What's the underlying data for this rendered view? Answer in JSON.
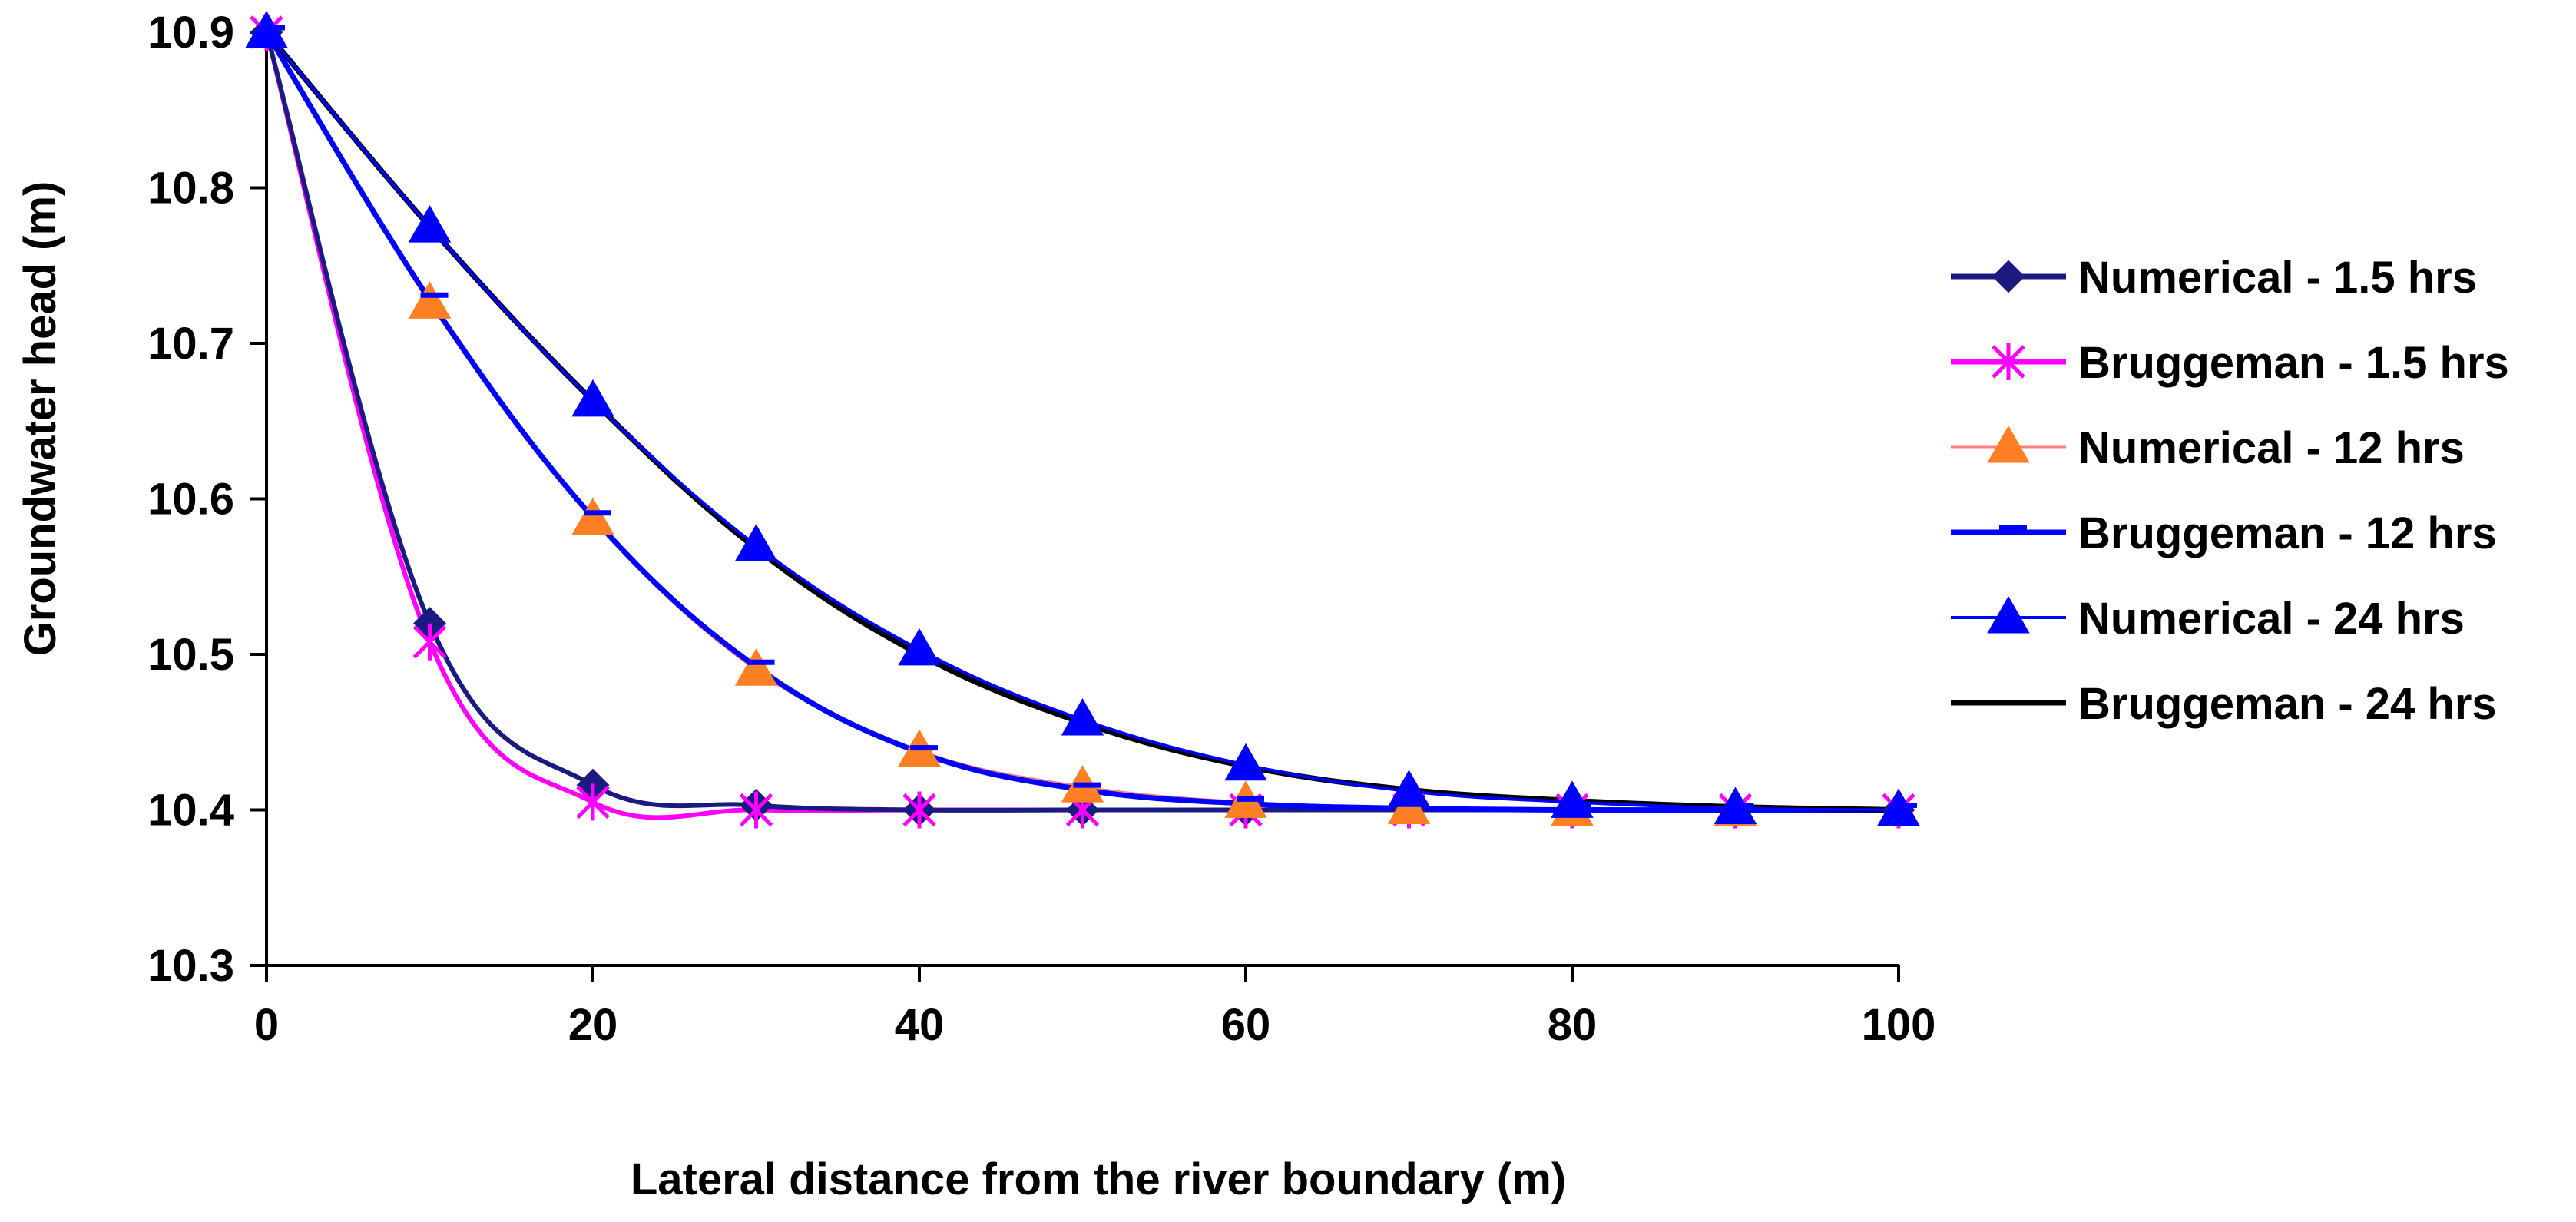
{
  "chart_data": {
    "type": "line",
    "title": "",
    "xlabel": "Lateral distance from the river boundary (m)",
    "ylabel": "Groundwater head  (m)",
    "xlim": [
      0,
      100
    ],
    "ylim": [
      10.3,
      10.9
    ],
    "x_ticks": [
      "0",
      "20",
      "40",
      "60",
      "80",
      "100"
    ],
    "y_ticks": [
      "10.3",
      "10.4",
      "10.5",
      "10.6",
      "10.7",
      "10.8",
      "10.9"
    ],
    "x_tick_values": [
      0,
      20,
      40,
      60,
      80,
      100
    ],
    "y_tick_values": [
      10.3,
      10.4,
      10.5,
      10.6,
      10.7,
      10.8,
      10.9
    ],
    "legend_position": "right",
    "series": [
      {
        "name": "Numerical - 1.5 hrs",
        "color": "#1a1a80",
        "marker": "diamond",
        "line": true,
        "x": [
          0,
          10,
          20,
          30,
          40,
          50,
          60,
          70,
          80,
          90,
          100
        ],
        "y": [
          10.9,
          10.52,
          10.416,
          10.403,
          10.4,
          10.4,
          10.4,
          10.4,
          10.4,
          10.4,
          10.4
        ]
      },
      {
        "name": "Bruggeman - 1.5 hrs",
        "color": "#ff00ff",
        "marker": "asterisk",
        "line": true,
        "x": [
          0,
          10,
          20,
          30,
          40,
          50,
          60,
          70,
          80,
          90,
          100
        ],
        "y": [
          10.9,
          10.508,
          10.405,
          10.4,
          10.4,
          10.4,
          10.4,
          10.4,
          10.4,
          10.4,
          10.4
        ]
      },
      {
        "name": "Numerical - 12 hrs",
        "color": "#ff7f24",
        "line_color": "#ff8080",
        "marker": "triangle",
        "line": true,
        "x": [
          0,
          10,
          20,
          30,
          40,
          50,
          60,
          70,
          80,
          90,
          100
        ],
        "y": [
          10.9,
          10.726,
          10.587,
          10.49,
          10.438,
          10.415,
          10.405,
          10.401,
          10.4,
          10.4,
          10.4
        ]
      },
      {
        "name": "Bruggeman - 12 hrs",
        "color": "#0000ff",
        "marker": "dash",
        "line": true,
        "x": [
          0,
          10,
          20,
          30,
          40,
          50,
          60,
          70,
          80,
          90,
          100
        ],
        "y": [
          10.9,
          10.728,
          10.588,
          10.492,
          10.437,
          10.413,
          10.404,
          10.401,
          10.4,
          10.4,
          10.4
        ]
      },
      {
        "name": "Numerical - 24 hrs",
        "color": "#0000ff",
        "marker": "triangle",
        "line": true,
        "x": [
          0,
          10,
          20,
          30,
          40,
          50,
          60,
          70,
          80,
          90,
          100
        ],
        "y": [
          10.9,
          10.775,
          10.663,
          10.57,
          10.503,
          10.458,
          10.429,
          10.412,
          10.405,
          10.401,
          10.4
        ]
      },
      {
        "name": "Bruggeman - 24 hrs",
        "color": "#000000",
        "marker": "none",
        "line": true,
        "x": [
          0,
          10,
          20,
          30,
          40,
          50,
          60,
          70,
          80,
          90,
          100
        ],
        "y": [
          10.9,
          10.775,
          10.663,
          10.568,
          10.5,
          10.456,
          10.428,
          10.413,
          10.406,
          10.402,
          10.4
        ]
      }
    ]
  }
}
